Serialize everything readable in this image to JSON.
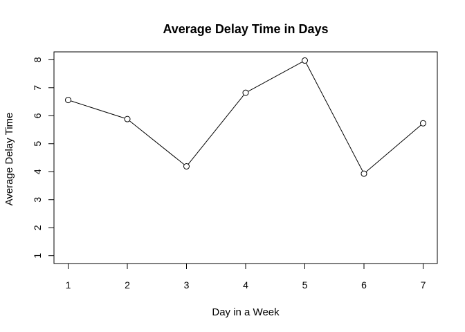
{
  "chart_data": {
    "type": "line",
    "title": "Average Delay Time in Days",
    "xlabel": "Day in a Week",
    "ylabel": "Average Delay Time",
    "x": [
      1,
      2,
      3,
      4,
      5,
      6,
      7
    ],
    "y": [
      6.56,
      5.88,
      4.19,
      6.82,
      7.97,
      3.93,
      5.73
    ],
    "xticks": [
      1,
      2,
      3,
      4,
      5,
      6,
      7
    ],
    "yticks": [
      1,
      2,
      3,
      4,
      5,
      6,
      7,
      8
    ],
    "xlim": [
      0.76,
      7.24
    ],
    "ylim": [
      0.72,
      8.28
    ],
    "markers": "open-circle",
    "line_color": "#000000",
    "grid": false,
    "legend": "none"
  }
}
